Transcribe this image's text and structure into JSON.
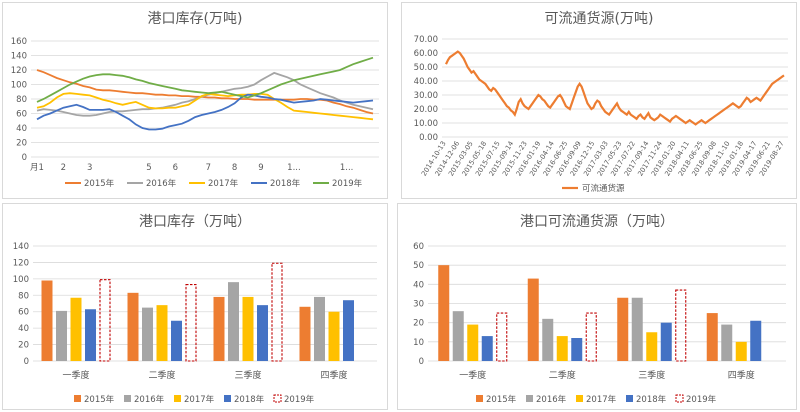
{
  "colors": {
    "2015年": "#ED7D31",
    "2016年": "#A5A5A5",
    "2017年": "#FFC000",
    "2018年": "#4472C4",
    "2019年": "#70AD47",
    "accent": "#ED7D31",
    "grid": "#D9D9D9",
    "text": "#595959"
  },
  "chart_data": [
    {
      "id": "tl",
      "type": "line",
      "title": "港口库存(万吨)",
      "ylim": [
        0,
        160
      ],
      "yticks": [
        "0",
        "20",
        "40",
        "60",
        "80",
        "100",
        "120",
        "140",
        "160"
      ],
      "x": [
        1,
        2,
        3,
        4,
        5,
        6,
        7,
        8,
        9,
        10,
        11,
        12,
        13,
        14,
        15,
        16,
        17,
        18,
        19,
        20,
        21,
        22,
        23,
        24,
        25,
        26,
        27,
        28,
        29,
        30,
        31,
        32,
        33,
        34,
        35,
        36,
        37,
        38,
        39,
        40,
        41,
        42,
        43,
        44,
        45,
        46,
        47,
        48,
        49,
        50,
        51,
        52
      ],
      "xtick_labels": [
        {
          "x": 1,
          "label": "月1"
        },
        {
          "x": 5,
          "label": "2"
        },
        {
          "x": 9,
          "label": "3"
        },
        {
          "x": 18,
          "label": "5"
        },
        {
          "x": 22,
          "label": "6"
        },
        {
          "x": 27,
          "label": "7"
        },
        {
          "x": 31,
          "label": "8"
        },
        {
          "x": 35,
          "label": "9"
        },
        {
          "x": 40,
          "label": "1..."
        },
        {
          "x": 48,
          "label": "1..."
        }
      ],
      "legend_position": "bottom",
      "series": [
        {
          "name": "2015年",
          "values": [
            120,
            117,
            113,
            109,
            106,
            103,
            101,
            98,
            96,
            93,
            92,
            92,
            91,
            90,
            89,
            88,
            88,
            87,
            86,
            86,
            85,
            85,
            84,
            84,
            83,
            83,
            82,
            82,
            81,
            81,
            80,
            80,
            80,
            79,
            79,
            79,
            79,
            79,
            79,
            79,
            80,
            80,
            79,
            79,
            78,
            75,
            73,
            70,
            68,
            65,
            62,
            60
          ]
        },
        {
          "name": "2016年",
          "values": [
            64,
            66,
            65,
            64,
            62,
            60,
            58,
            57,
            57,
            58,
            60,
            62,
            63,
            63,
            64,
            65,
            66,
            66,
            67,
            68,
            70,
            72,
            75,
            77,
            80,
            83,
            86,
            88,
            90,
            92,
            94,
            95,
            97,
            100,
            106,
            111,
            116,
            113,
            110,
            106,
            100,
            96,
            92,
            88,
            85,
            82,
            78,
            75,
            72,
            70,
            68,
            66
          ]
        },
        {
          "name": "2017年",
          "values": [
            68,
            70,
            75,
            82,
            87,
            88,
            87,
            86,
            85,
            82,
            79,
            77,
            74,
            72,
            74,
            76,
            72,
            68,
            67,
            67,
            68,
            68,
            70,
            72,
            78,
            84,
            87,
            86,
            85,
            84,
            85,
            86,
            86,
            87,
            87,
            86,
            80,
            75,
            69,
            64,
            63,
            62,
            61,
            60,
            59,
            58,
            57,
            56,
            55,
            54,
            53,
            52
          ]
        },
        {
          "name": "2018年",
          "values": [
            52,
            57,
            60,
            64,
            68,
            70,
            72,
            69,
            65,
            65,
            65,
            66,
            62,
            57,
            52,
            45,
            40,
            38,
            38,
            39,
            42,
            44,
            46,
            50,
            55,
            58,
            60,
            62,
            65,
            69,
            74,
            82,
            86,
            85,
            83,
            82,
            80,
            79,
            77,
            75,
            76,
            77,
            78,
            80,
            79,
            78,
            77,
            76,
            75,
            76,
            77,
            78
          ]
        },
        {
          "name": "2019年",
          "values": [
            76,
            80,
            85,
            90,
            95,
            100,
            104,
            108,
            111,
            113,
            114,
            114,
            113,
            112,
            110,
            107,
            105,
            102,
            100,
            98,
            96,
            94,
            92,
            91,
            90,
            89,
            88,
            89,
            90,
            88,
            86,
            84,
            82,
            85,
            88,
            92,
            96,
            100,
            103,
            106,
            108,
            110,
            112,
            114,
            116,
            118,
            120,
            124,
            128,
            131,
            134,
            137
          ]
        }
      ]
    },
    {
      "id": "tr",
      "type": "line",
      "title": "可流通货源(万吨)",
      "ylim": [
        0,
        70
      ],
      "yticks": [
        "0.00",
        "10.00",
        "20.00",
        "30.00",
        "40.00",
        "50.00",
        "60.00",
        "70.00"
      ],
      "xtick_labels": [
        "2014-10-13",
        "2014-12-06",
        "2015-03-05",
        "2015-05-18",
        "2015-07-15",
        "2015-09-14",
        "2015-11-23",
        "2016-01-19",
        "2016-04-14",
        "2016-06-25",
        "2016-09-09",
        "2016-12-15",
        "2017-03-03",
        "2017-05-23",
        "2017-07-22",
        "2017-09-14",
        "2017-11-24",
        "2018-01-20",
        "2018-04-11",
        "2018-06-25",
        "2018-09-08",
        "2018-11-10",
        "2019-01-18",
        "2019-04-17",
        "2019-06-21",
        "2019-08-27"
      ],
      "legend_position": "bottom",
      "series": [
        {
          "name": "可流通货源",
          "values": [
            52,
            55,
            57,
            58,
            59,
            60,
            61,
            60,
            58,
            56,
            53,
            50,
            48,
            46,
            47,
            45,
            43,
            41,
            40,
            39,
            38,
            36,
            34,
            33,
            35,
            34,
            32,
            30,
            28,
            26,
            24,
            22,
            21,
            19,
            18,
            16,
            20,
            25,
            27,
            24,
            22,
            21,
            20,
            22,
            24,
            26,
            28,
            30,
            29,
            27,
            26,
            24,
            22,
            21,
            23,
            25,
            27,
            29,
            30,
            28,
            25,
            22,
            21,
            20,
            24,
            28,
            32,
            36,
            38,
            36,
            32,
            28,
            24,
            22,
            20,
            21,
            24,
            26,
            25,
            22,
            20,
            18,
            17,
            16,
            18,
            20,
            22,
            24,
            21,
            19,
            18,
            17,
            16,
            18,
            16,
            15,
            14,
            13,
            15,
            16,
            14,
            13,
            15,
            17,
            14,
            13,
            12,
            13,
            14,
            16,
            15,
            14,
            13,
            12,
            11,
            13,
            14,
            15,
            14,
            13,
            12,
            11,
            10,
            11,
            12,
            11,
            10,
            9,
            10,
            11,
            12,
            11,
            10,
            11,
            12,
            13,
            14,
            15,
            16,
            17,
            18,
            19,
            20,
            21,
            22,
            23,
            24,
            23,
            22,
            21,
            22,
            24,
            26,
            28,
            27,
            25,
            26,
            27,
            28,
            27,
            26,
            28,
            30,
            32,
            34,
            36,
            38,
            39,
            40,
            41,
            42,
            43,
            44
          ]
        }
      ]
    },
    {
      "id": "bl",
      "type": "bar",
      "title": "港口库存（万吨）",
      "ylim": [
        0,
        140
      ],
      "yticks": [
        "0",
        "20",
        "40",
        "60",
        "80",
        "100",
        "120",
        "140"
      ],
      "categories": [
        "一季度",
        "二季度",
        "三季度",
        "四季度"
      ],
      "legend_position": "bottom",
      "series": [
        {
          "name": "2015年",
          "values": [
            98,
            83,
            78,
            66
          ]
        },
        {
          "name": "2016年",
          "values": [
            61,
            65,
            96,
            78
          ]
        },
        {
          "name": "2017年",
          "values": [
            77,
            68,
            78,
            60
          ]
        },
        {
          "name": "2018年",
          "values": [
            63,
            49,
            68,
            74
          ]
        },
        {
          "name": "2019年",
          "values": [
            99,
            93,
            119,
            null
          ],
          "style": "dashed-outline"
        }
      ]
    },
    {
      "id": "br",
      "type": "bar",
      "title": "港口可流通货源（万吨）",
      "ylim": [
        0,
        60
      ],
      "yticks": [
        "0",
        "10",
        "20",
        "30",
        "40",
        "50",
        "60"
      ],
      "categories": [
        "一季度",
        "二季度",
        "三季度",
        "四季度"
      ],
      "legend_position": "bottom",
      "series": [
        {
          "name": "2015年",
          "values": [
            50,
            43,
            33,
            25
          ]
        },
        {
          "name": "2016年",
          "values": [
            26,
            22,
            33,
            19
          ]
        },
        {
          "name": "2017年",
          "values": [
            19,
            13,
            15,
            10
          ]
        },
        {
          "name": "2018年",
          "values": [
            13,
            12,
            20,
            21
          ]
        },
        {
          "name": "2019年",
          "values": [
            25,
            25,
            37,
            null
          ],
          "style": "dashed-outline"
        }
      ]
    }
  ]
}
